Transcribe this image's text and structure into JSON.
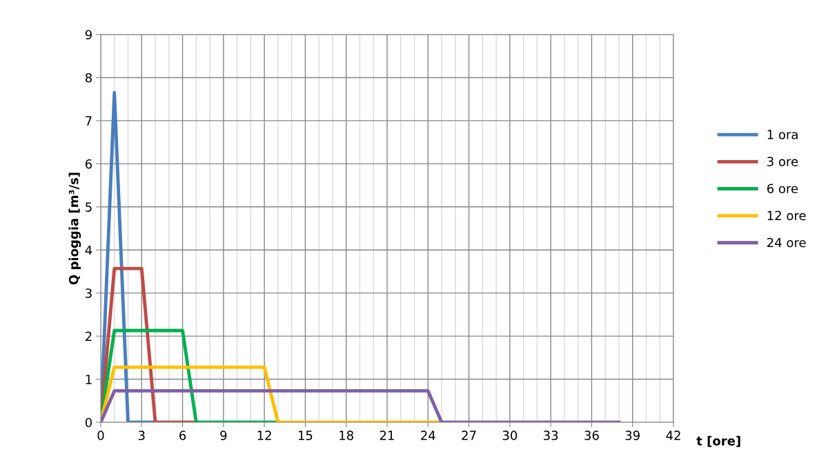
{
  "chart_data": {
    "type": "line",
    "xlabel": "t [ore]",
    "ylabel": "Q pioggia [m³/s]",
    "xlim": [
      0,
      42
    ],
    "ylim": [
      0,
      9
    ],
    "xticks": [
      0,
      {
        "value": 1,
        "label": null
      },
      {
        "value": 2,
        "label": null
      },
      3,
      {
        "value": 4,
        "label": null
      },
      {
        "value": 5,
        "label": null
      },
      6,
      {
        "value": 7,
        "label": null
      },
      {
        "value": 8,
        "label": null
      },
      9,
      {
        "value": 10,
        "label": null
      },
      {
        "value": 11,
        "label": null
      },
      12,
      {
        "value": 13,
        "label": null
      },
      {
        "value": 14,
        "label": null
      },
      15,
      {
        "value": 16,
        "label": null
      },
      {
        "value": 17,
        "label": null
      },
      18,
      {
        "value": 19,
        "label": null
      },
      {
        "value": 20,
        "label": null
      },
      21,
      {
        "value": 22,
        "label": null
      },
      {
        "value": 23,
        "label": null
      },
      24,
      {
        "value": 25,
        "label": null
      },
      {
        "value": 26,
        "label": null
      },
      27,
      {
        "value": 28,
        "label": null
      },
      {
        "value": 29,
        "label": null
      },
      30,
      {
        "value": 31,
        "label": null
      },
      {
        "value": 32,
        "label": null
      },
      33,
      {
        "value": 34,
        "label": null
      },
      {
        "value": 35,
        "label": null
      },
      36,
      {
        "value": 37,
        "label": null
      },
      {
        "value": 38,
        "label": null
      },
      39,
      {
        "value": 40,
        "label": null
      },
      {
        "value": 41,
        "label": null
      },
      42
    ],
    "yticks": [
      0,
      1,
      2,
      3,
      4,
      5,
      6,
      7,
      8,
      9
    ],
    "grid": true,
    "legend": "right",
    "marker": "none",
    "line_style": "solid",
    "series": [
      {
        "name": "1 ora",
        "color": "#4a7ebb",
        "x": [
          0,
          1,
          2,
          3,
          4
        ],
        "values": [
          0,
          7.65,
          0,
          0,
          0
        ]
      },
      {
        "name": "3 ore",
        "color": "#be4b48",
        "x": [
          0,
          1,
          3,
          4,
          5,
          6,
          7
        ],
        "values": [
          0,
          3.57,
          3.57,
          0,
          0,
          0,
          0
        ]
      },
      {
        "name": "6 ore",
        "color": "#00b050",
        "x": [
          0,
          1,
          6,
          7,
          13
        ],
        "values": [
          0,
          2.13,
          2.13,
          0,
          0
        ]
      },
      {
        "name": "12 ore",
        "color": "#ffc000",
        "x": [
          0,
          1,
          12,
          13,
          25
        ],
        "values": [
          0,
          1.28,
          1.28,
          0,
          0
        ]
      },
      {
        "name": "24 ore",
        "color": "#7f60a8",
        "x": [
          0,
          1,
          24,
          25,
          38
        ],
        "values": [
          0,
          0.73,
          0.73,
          0,
          0
        ]
      }
    ]
  }
}
